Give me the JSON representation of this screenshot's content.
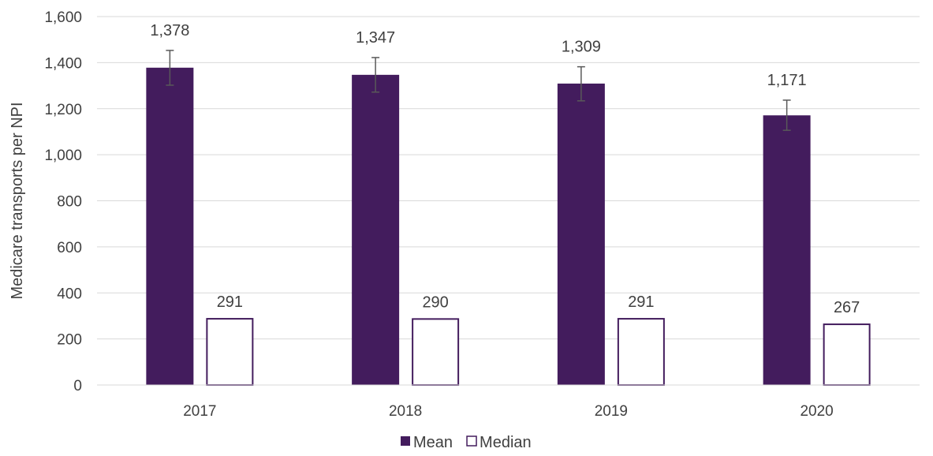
{
  "chart_data": {
    "type": "bar",
    "categories": [
      "2017",
      "2018",
      "2019",
      "2020"
    ],
    "series": [
      {
        "name": "Mean",
        "values": [
          1378,
          1347,
          1309,
          1171
        ],
        "labels": [
          "1,378",
          "1,347",
          "1,309",
          "1,171"
        ],
        "error": [
          [
            1302,
            1453
          ],
          [
            1272,
            1422
          ],
          [
            1234,
            1382
          ],
          [
            1106,
            1237
          ]
        ],
        "fill": "#431c5d",
        "stroke": "#431c5d"
      },
      {
        "name": "Median",
        "values": [
          291,
          290,
          291,
          267
        ],
        "labels": [
          "291",
          "290",
          "291",
          "267"
        ],
        "fill": "#ffffff",
        "stroke": "#431c5d"
      }
    ],
    "ylabel": "Medicare transports per NPI",
    "xlabel": "",
    "ylim": [
      0,
      1600
    ],
    "yticks": [
      0,
      200,
      400,
      600,
      800,
      1000,
      1200,
      1400,
      1600
    ],
    "ytick_labels": [
      "0",
      "200",
      "400",
      "600",
      "800",
      "1,000",
      "1,200",
      "1,400",
      "1,600"
    ],
    "grid": true,
    "legend": "bottom-center",
    "colors": {
      "mean": "#431c5d",
      "median_border": "#431c5d",
      "text": "#404040",
      "grid": "#d9d9d9",
      "error_bar": "#595959"
    }
  }
}
